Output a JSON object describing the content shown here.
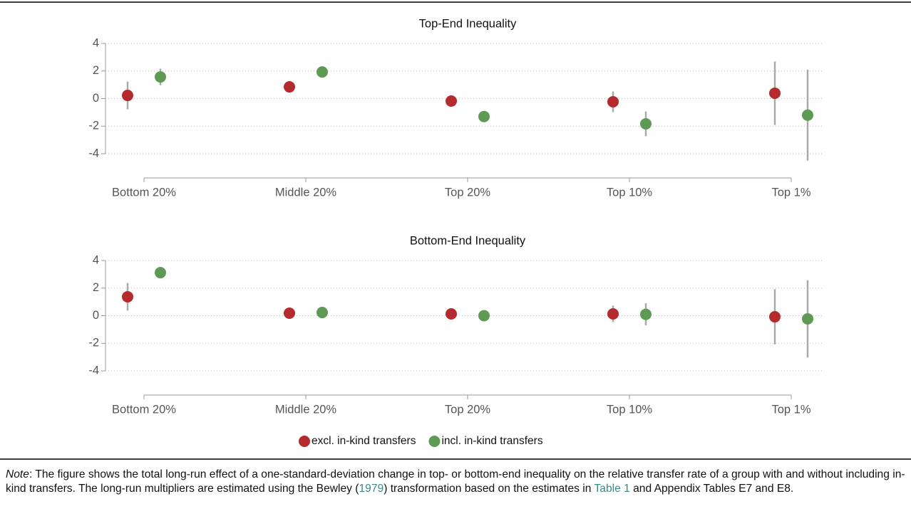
{
  "chart_data": [
    {
      "type": "scatter",
      "title": "Top-End Inequality",
      "categories": [
        "Bottom 20%",
        "Middle 20%",
        "Top 20%",
        "Top 10%",
        "Top 1%"
      ],
      "ylim": [
        -4,
        4
      ],
      "yticks": [
        -4,
        -2,
        0,
        2,
        4
      ],
      "grid": true,
      "series": [
        {
          "name": "excl. in-kind transfers",
          "color": "#b52a2d",
          "values": [
            0.23,
            0.85,
            -0.18,
            -0.23,
            0.39
          ],
          "errors": [
            1.0,
            0.1,
            0.3,
            0.75,
            2.3
          ]
        },
        {
          "name": "incl. in-kind transfers",
          "color": "#5f9a55",
          "values": [
            1.57,
            1.93,
            -1.3,
            -1.83,
            -1.2
          ],
          "errors": [
            0.6,
            0.1,
            0.35,
            0.9,
            3.3
          ]
        }
      ]
    },
    {
      "type": "scatter",
      "title": "Bottom-End Inequality",
      "categories": [
        "Bottom 20%",
        "Middle 20%",
        "Top 20%",
        "Top 10%",
        "Top 1%"
      ],
      "ylim": [
        -4,
        4
      ],
      "yticks": [
        -4,
        -2,
        0,
        2,
        4
      ],
      "grid": true,
      "series": [
        {
          "color": "#b52a2d",
          "values": [
            1.37,
            0.18,
            0.13,
            0.13,
            -0.08
          ],
          "errors": [
            1.0,
            0.1,
            0.1,
            0.6,
            2.0
          ]
        },
        {
          "color": "#5f9a55",
          "values": [
            3.12,
            0.23,
            0.0,
            0.1,
            -0.23
          ],
          "errors": [
            0.4,
            0.1,
            0.2,
            0.8,
            2.8
          ]
        }
      ]
    }
  ],
  "legend": "bottom",
  "note": [
    {
      "text": "Note",
      "style": "italic"
    },
    {
      "text": ": The figure shows the total long-run effect of a one-standard-deviation change in top- or bottom-end inequality on the relative transfer rate of a group with and without including in-kind transfers. The long-run multipliers are estimated using the Bewley (",
      "style": "plain"
    },
    {
      "text": "1979",
      "style": "link"
    },
    {
      "text": ") transformation based on the estimates in ",
      "style": "plain"
    },
    {
      "text": "Table 1",
      "style": "link"
    },
    {
      "text": " and Appendix Tables E7 and E8.",
      "style": "plain"
    }
  ]
}
